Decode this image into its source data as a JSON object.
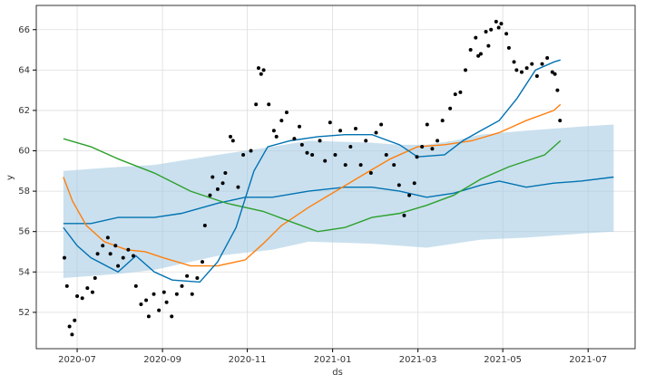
{
  "chart_data": {
    "type": "forecast",
    "x_label": "ds",
    "y_label": "y",
    "xlim": [
      2020.42,
      2021.592
    ],
    "ylim": [
      50.2,
      67.2
    ],
    "xticks": [
      {
        "value": 2020.5,
        "label": "2020-07"
      },
      {
        "value": 2020.667,
        "label": "2020-09"
      },
      {
        "value": 2020.833,
        "label": "2020-11"
      },
      {
        "value": 2021.0,
        "label": "2021-01"
      },
      {
        "value": 2021.167,
        "label": "2021-03"
      },
      {
        "value": 2021.333,
        "label": "2021-05"
      },
      {
        "value": 2021.5,
        "label": "2021-07"
      }
    ],
    "yticks": [
      52,
      54,
      56,
      58,
      60,
      62,
      64,
      66
    ],
    "grid": true,
    "band": {
      "color": "#a6cbe3",
      "x": [
        2020.473,
        2020.58,
        2020.651,
        2020.775,
        2020.882,
        2020.953,
        2021.077,
        2021.131,
        2021.184,
        2021.237,
        2021.29,
        2021.379,
        2021.433,
        2021.486,
        2021.55
      ],
      "upper": [
        59.0,
        59.2,
        59.3,
        59.8,
        60.2,
        60.5,
        60.4,
        60.3,
        60.3,
        60.5,
        60.8,
        61.0,
        61.1,
        61.2,
        61.3
      ],
      "lower": [
        53.7,
        53.9,
        54.1,
        54.8,
        55.1,
        55.5,
        55.4,
        55.3,
        55.2,
        55.4,
        55.6,
        55.7,
        55.8,
        55.9,
        56.0
      ]
    },
    "series": [
      {
        "style": "line",
        "color": "#0072b2",
        "x": [
          2020.473,
          2020.527,
          2020.58,
          2020.651,
          2020.704,
          2020.775,
          2020.829,
          2020.882,
          2020.953,
          2021.024,
          2021.077,
          2021.131,
          2021.184,
          2021.237,
          2021.29,
          2021.326,
          2021.379,
          2021.433,
          2021.486,
          2021.55
        ],
        "values": [
          56.4,
          56.4,
          56.7,
          56.7,
          56.9,
          57.4,
          57.7,
          57.7,
          58.0,
          58.2,
          58.2,
          58.0,
          57.7,
          57.9,
          58.3,
          58.5,
          58.2,
          58.4,
          58.5,
          58.7
        ]
      },
      {
        "style": "line",
        "color": "#ff7f0e",
        "x": [
          2020.473,
          2020.491,
          2020.518,
          2020.553,
          2020.597,
          2020.633,
          2020.669,
          2020.722,
          2020.775,
          2020.829,
          2020.864,
          2020.9,
          2020.953,
          2021.006,
          2021.059,
          2021.113,
          2021.166,
          2021.219,
          2021.273,
          2021.326,
          2021.379,
          2021.433,
          2021.446
        ],
        "values": [
          58.7,
          57.5,
          56.3,
          55.5,
          55.1,
          55.0,
          54.7,
          54.3,
          54.3,
          54.6,
          55.4,
          56.3,
          57.2,
          58.0,
          58.8,
          59.6,
          60.2,
          60.3,
          60.5,
          60.9,
          61.5,
          62.0,
          62.3
        ]
      },
      {
        "style": "line",
        "color": "#2ca02c",
        "x": [
          2020.473,
          2020.527,
          2020.58,
          2020.651,
          2020.722,
          2020.793,
          2020.864,
          2020.917,
          2020.971,
          2021.024,
          2021.077,
          2021.131,
          2021.184,
          2021.237,
          2021.29,
          2021.344,
          2021.415,
          2021.446
        ],
        "values": [
          60.6,
          60.2,
          59.6,
          58.9,
          58.0,
          57.4,
          57.0,
          56.5,
          56.0,
          56.2,
          56.7,
          56.9,
          57.3,
          57.8,
          58.6,
          59.2,
          59.8,
          60.5
        ]
      },
      {
        "style": "line",
        "color": "#0072b2",
        "x": [
          2020.473,
          2020.5,
          2020.527,
          2020.58,
          2020.615,
          2020.651,
          2020.686,
          2020.74,
          2020.775,
          2020.811,
          2020.846,
          2020.873,
          2020.917,
          2020.971,
          2021.024,
          2021.077,
          2021.131,
          2021.166,
          2021.219,
          2021.255,
          2021.29,
          2021.326,
          2021.361,
          2021.397,
          2021.433,
          2021.446
        ],
        "values": [
          56.2,
          55.3,
          54.7,
          54.0,
          54.8,
          54.0,
          53.6,
          53.5,
          54.5,
          56.2,
          59.0,
          60.2,
          60.5,
          60.7,
          60.8,
          60.8,
          60.3,
          59.7,
          59.8,
          60.5,
          61.0,
          61.5,
          62.6,
          64.0,
          64.4,
          64.5
        ]
      },
      {
        "style": "points",
        "color": "#000000",
        "x": [
          2020.475,
          2020.48,
          2020.485,
          2020.49,
          2020.495,
          2020.5,
          2020.51,
          2020.52,
          2020.53,
          2020.535,
          2020.54,
          2020.55,
          2020.56,
          2020.565,
          2020.575,
          2020.58,
          2020.59,
          2020.6,
          2020.61,
          2020.615,
          2020.625,
          2020.635,
          2020.64,
          2020.65,
          2020.66,
          2020.67,
          2020.675,
          2020.685,
          2020.695,
          2020.705,
          2020.715,
          2020.725,
          2020.735,
          2020.745,
          2020.75,
          2020.76,
          2020.765,
          2020.775,
          2020.785,
          2020.79,
          2020.8,
          2020.805,
          2020.815,
          2020.825,
          2020.84,
          2020.85,
          2020.855,
          2020.86,
          2020.865,
          2020.875,
          2020.885,
          2020.89,
          2020.9,
          2020.91,
          2020.925,
          2020.935,
          2020.94,
          2020.95,
          2020.96,
          2020.975,
          2020.985,
          2020.995,
          2021.005,
          2021.015,
          2021.025,
          2021.035,
          2021.045,
          2021.055,
          2021.065,
          2021.075,
          2021.085,
          2021.095,
          2021.105,
          2021.12,
          2021.13,
          2021.14,
          2021.15,
          2021.16,
          2021.165,
          2021.175,
          2021.185,
          2021.195,
          2021.205,
          2021.215,
          2021.23,
          2021.24,
          2021.25,
          2021.26,
          2021.27,
          2021.28,
          2021.285,
          2021.29,
          2021.3,
          2021.305,
          2021.31,
          2021.32,
          2021.325,
          2021.33,
          2021.34,
          2021.345,
          2021.355,
          2021.36,
          2021.37,
          2021.38,
          2021.39,
          2021.4,
          2021.41,
          2021.42,
          2021.43,
          2021.435,
          2021.44,
          2021.445
        ],
        "values": [
          54.7,
          53.3,
          51.3,
          50.9,
          51.6,
          52.8,
          52.7,
          53.2,
          53.0,
          53.7,
          54.9,
          55.3,
          55.7,
          54.9,
          55.3,
          54.3,
          54.7,
          55.1,
          54.8,
          53.3,
          52.4,
          52.6,
          51.8,
          52.9,
          52.1,
          53.0,
          52.5,
          51.8,
          52.9,
          53.3,
          53.8,
          52.9,
          53.7,
          54.5,
          56.3,
          57.8,
          58.7,
          58.1,
          58.4,
          58.9,
          60.7,
          60.5,
          58.2,
          59.8,
          60.0,
          62.3,
          64.1,
          63.8,
          64.0,
          62.3,
          61.0,
          60.7,
          61.5,
          61.9,
          60.6,
          61.2,
          60.3,
          59.9,
          59.8,
          60.5,
          59.5,
          61.4,
          59.8,
          61.0,
          59.3,
          60.2,
          61.1,
          59.3,
          60.5,
          58.9,
          60.9,
          61.3,
          59.8,
          59.3,
          58.3,
          56.8,
          57.8,
          58.4,
          59.7,
          60.2,
          61.3,
          60.1,
          60.5,
          61.5,
          62.1,
          62.8,
          62.9,
          64.0,
          65.0,
          65.6,
          64.7,
          64.8,
          65.9,
          65.2,
          66.0,
          66.4,
          66.1,
          66.3,
          65.8,
          65.1,
          64.4,
          64.0,
          63.9,
          64.1,
          64.3,
          63.7,
          64.3,
          64.6,
          63.9,
          63.8,
          63.0,
          61.5
        ]
      }
    ]
  }
}
